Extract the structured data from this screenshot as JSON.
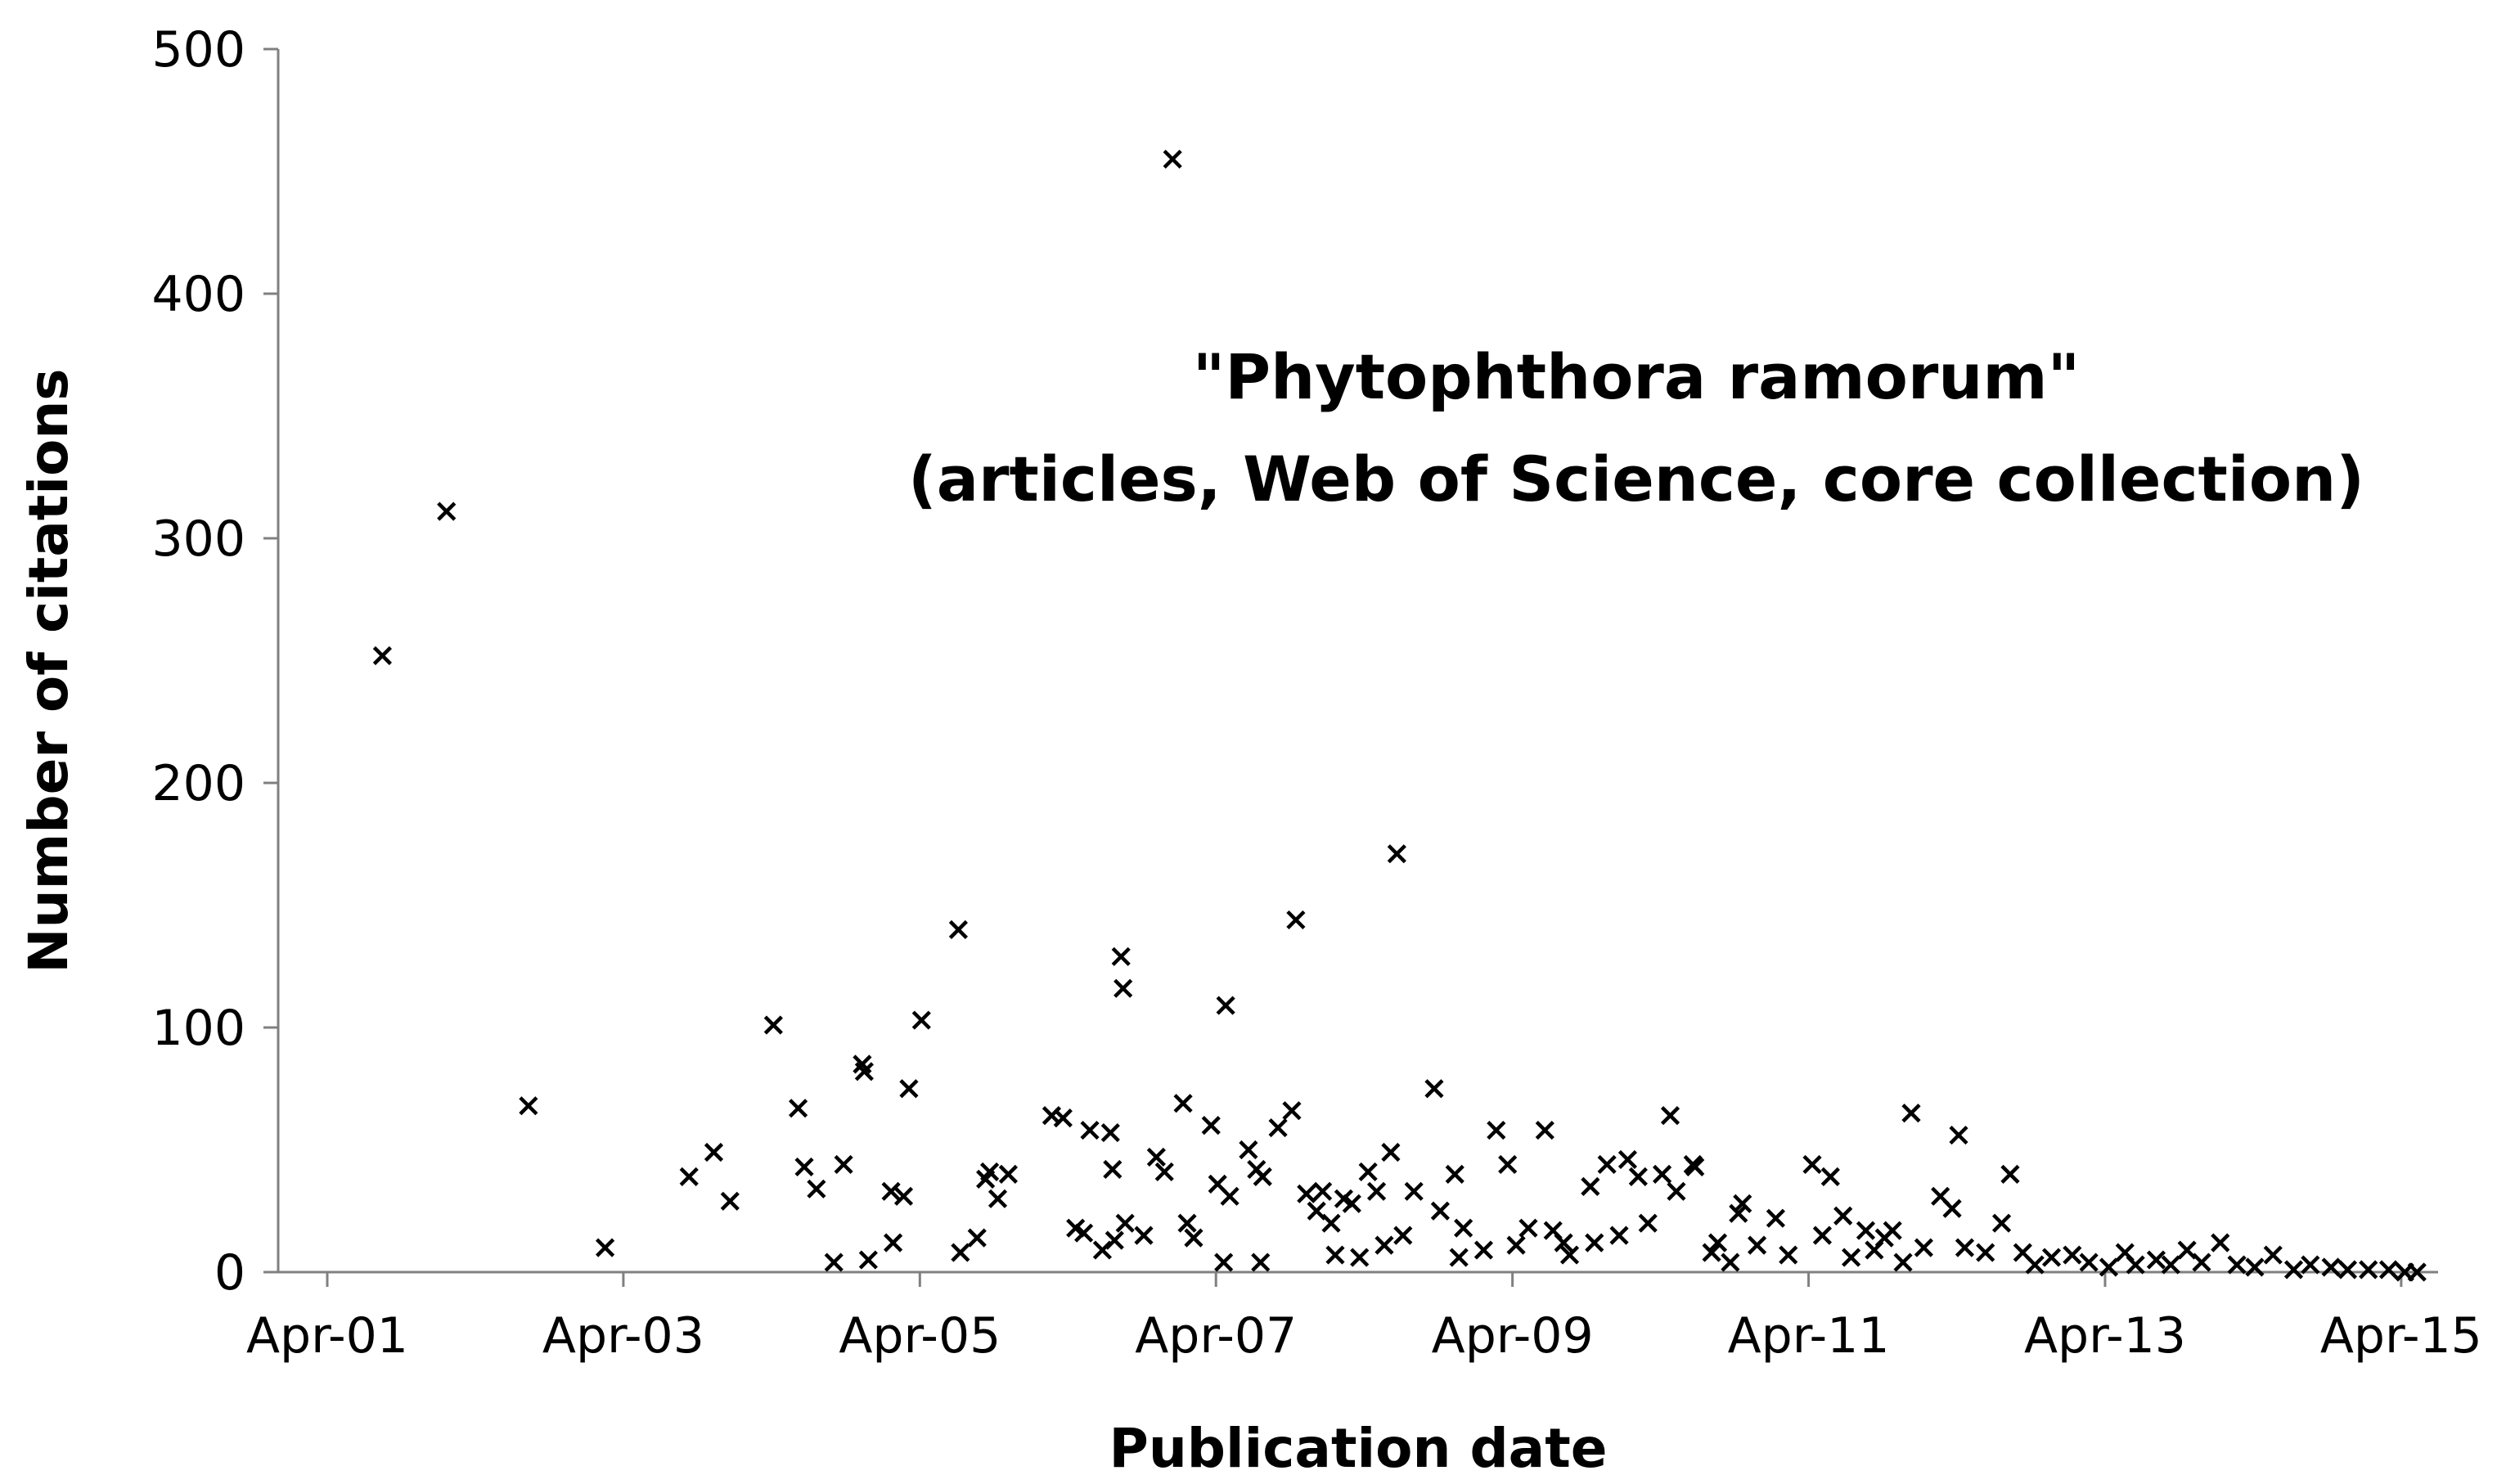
{
  "chart_data": {
    "type": "scatter",
    "title_line1": "\"Phytophthora ramorum\"",
    "title_line2": "(articles, Web of Science, core collection)",
    "xlabel": "Publication date",
    "ylabel": "Number of citations",
    "x_tick_labels": [
      "Apr-01",
      "Apr-03",
      "Apr-05",
      "Apr-07",
      "Apr-09",
      "Apr-11",
      "Apr-13",
      "Apr-15"
    ],
    "x_tick_values": [
      "2001-04-01",
      "2003-04-01",
      "2005-04-01",
      "2007-04-01",
      "2009-04-01",
      "2011-04-01",
      "2013-04-01",
      "2015-04-01"
    ],
    "xlim": [
      "2000-12-01",
      "2015-07-01"
    ],
    "y_ticks": [
      0,
      100,
      200,
      300,
      400,
      500
    ],
    "ylim": [
      0,
      500
    ],
    "marker": "x",
    "grid": false,
    "series": [
      {
        "points": [
          [
            "2001-08-15",
            252
          ],
          [
            "2002-01-20",
            311
          ],
          [
            "2002-08-10",
            68
          ],
          [
            "2003-02-15",
            10
          ],
          [
            "2003-09-10",
            39
          ],
          [
            "2003-11-10",
            49
          ],
          [
            "2003-12-20",
            29
          ],
          [
            "2004-04-05",
            101
          ],
          [
            "2004-06-05",
            67
          ],
          [
            "2004-06-20",
            43
          ],
          [
            "2004-07-20",
            34
          ],
          [
            "2004-09-01",
            4
          ],
          [
            "2004-09-25",
            44
          ],
          [
            "2004-11-10",
            85
          ],
          [
            "2004-11-15",
            82
          ],
          [
            "2004-11-25",
            5
          ],
          [
            "2005-01-20",
            33
          ],
          [
            "2005-01-25",
            12
          ],
          [
            "2005-02-20",
            31
          ],
          [
            "2005-03-05",
            75
          ],
          [
            "2005-04-05",
            103
          ],
          [
            "2005-07-05",
            140
          ],
          [
            "2005-07-10",
            8
          ],
          [
            "2005-08-20",
            14
          ],
          [
            "2005-09-10",
            38
          ],
          [
            "2005-09-20",
            41
          ],
          [
            "2005-10-10",
            30
          ],
          [
            "2005-11-05",
            40
          ],
          [
            "2006-02-20",
            64
          ],
          [
            "2006-03-20",
            63
          ],
          [
            "2006-04-20",
            18
          ],
          [
            "2006-05-10",
            16
          ],
          [
            "2006-05-25",
            58
          ],
          [
            "2006-06-25",
            9
          ],
          [
            "2006-07-15",
            57
          ],
          [
            "2006-07-20",
            42
          ],
          [
            "2006-07-25",
            13
          ],
          [
            "2006-08-10",
            129
          ],
          [
            "2006-08-15",
            116
          ],
          [
            "2006-08-20",
            20
          ],
          [
            "2006-10-05",
            15
          ],
          [
            "2006-11-05",
            47
          ],
          [
            "2006-11-25",
            41
          ],
          [
            "2006-12-15",
            455
          ],
          [
            "2007-01-10",
            69
          ],
          [
            "2007-01-20",
            20
          ],
          [
            "2007-02-05",
            14
          ],
          [
            "2007-03-20",
            60
          ],
          [
            "2007-04-05",
            36
          ],
          [
            "2007-04-20",
            4
          ],
          [
            "2007-04-25",
            109
          ],
          [
            "2007-05-05",
            31
          ],
          [
            "2007-06-20",
            50
          ],
          [
            "2007-07-10",
            42
          ],
          [
            "2007-07-20",
            4
          ],
          [
            "2007-07-25",
            39
          ],
          [
            "2007-09-01",
            59
          ],
          [
            "2007-10-05",
            66
          ],
          [
            "2007-10-15",
            144
          ],
          [
            "2007-11-10",
            32
          ],
          [
            "2007-12-05",
            25
          ],
          [
            "2007-12-20",
            33
          ],
          [
            "2008-01-10",
            20
          ],
          [
            "2008-01-20",
            7
          ],
          [
            "2008-02-10",
            30
          ],
          [
            "2008-03-01",
            28
          ],
          [
            "2008-03-20",
            6
          ],
          [
            "2008-04-10",
            41
          ],
          [
            "2008-05-01",
            33
          ],
          [
            "2008-05-20",
            11
          ],
          [
            "2008-06-05",
            49
          ],
          [
            "2008-06-20",
            171
          ],
          [
            "2008-07-05",
            15
          ],
          [
            "2008-08-01",
            33
          ],
          [
            "2008-09-20",
            75
          ],
          [
            "2008-10-05",
            25
          ],
          [
            "2008-11-10",
            40
          ],
          [
            "2008-11-20",
            6
          ],
          [
            "2008-12-01",
            18
          ],
          [
            "2009-01-20",
            9
          ],
          [
            "2009-02-20",
            58
          ],
          [
            "2009-03-20",
            44
          ],
          [
            "2009-04-10",
            11
          ],
          [
            "2009-05-10",
            18
          ],
          [
            "2009-06-20",
            58
          ],
          [
            "2009-07-10",
            17
          ],
          [
            "2009-08-05",
            12
          ],
          [
            "2009-08-20",
            7
          ],
          [
            "2009-10-10",
            35
          ],
          [
            "2009-10-20",
            12
          ],
          [
            "2009-11-20",
            44
          ],
          [
            "2009-12-20",
            15
          ],
          [
            "2010-01-10",
            46
          ],
          [
            "2010-02-05",
            39
          ],
          [
            "2010-03-01",
            20
          ],
          [
            "2010-04-05",
            40
          ],
          [
            "2010-04-25",
            64
          ],
          [
            "2010-05-10",
            33
          ],
          [
            "2010-06-20",
            44
          ],
          [
            "2010-06-25",
            43
          ],
          [
            "2010-08-05",
            8
          ],
          [
            "2010-08-20",
            12
          ],
          [
            "2010-09-20",
            4
          ],
          [
            "2010-10-10",
            24
          ],
          [
            "2010-10-20",
            28
          ],
          [
            "2010-11-25",
            11
          ],
          [
            "2011-01-10",
            22
          ],
          [
            "2011-02-10",
            7
          ],
          [
            "2011-04-10",
            44
          ],
          [
            "2011-05-05",
            15
          ],
          [
            "2011-05-25",
            39
          ],
          [
            "2011-06-25",
            23
          ],
          [
            "2011-07-15",
            6
          ],
          [
            "2011-08-20",
            17
          ],
          [
            "2011-09-10",
            9
          ],
          [
            "2011-10-05",
            14
          ],
          [
            "2011-10-25",
            17
          ],
          [
            "2011-11-20",
            4
          ],
          [
            "2011-12-10",
            65
          ],
          [
            "2012-01-10",
            10
          ],
          [
            "2012-02-20",
            31
          ],
          [
            "2012-03-20",
            26
          ],
          [
            "2012-04-05",
            56
          ],
          [
            "2012-04-20",
            10
          ],
          [
            "2012-06-10",
            8
          ],
          [
            "2012-07-20",
            20
          ],
          [
            "2012-08-10",
            40
          ],
          [
            "2012-09-10",
            8
          ],
          [
            "2012-10-10",
            3
          ],
          [
            "2012-11-20",
            6
          ],
          [
            "2013-01-10",
            7
          ],
          [
            "2013-02-20",
            4
          ],
          [
            "2013-04-10",
            2
          ],
          [
            "2013-05-20",
            8
          ],
          [
            "2013-06-15",
            3
          ],
          [
            "2013-08-05",
            5
          ],
          [
            "2013-09-10",
            3
          ],
          [
            "2013-10-20",
            9
          ],
          [
            "2013-11-25",
            4
          ],
          [
            "2014-01-10",
            12
          ],
          [
            "2014-02-20",
            3
          ],
          [
            "2014-04-05",
            2
          ],
          [
            "2014-05-20",
            7
          ],
          [
            "2014-07-10",
            1
          ],
          [
            "2014-08-20",
            3
          ],
          [
            "2014-10-10",
            2
          ],
          [
            "2014-11-20",
            1
          ],
          [
            "2015-01-10",
            1
          ],
          [
            "2015-03-01",
            1
          ],
          [
            "2015-04-10",
            0
          ],
          [
            "2015-05-10",
            0
          ]
        ]
      }
    ]
  }
}
